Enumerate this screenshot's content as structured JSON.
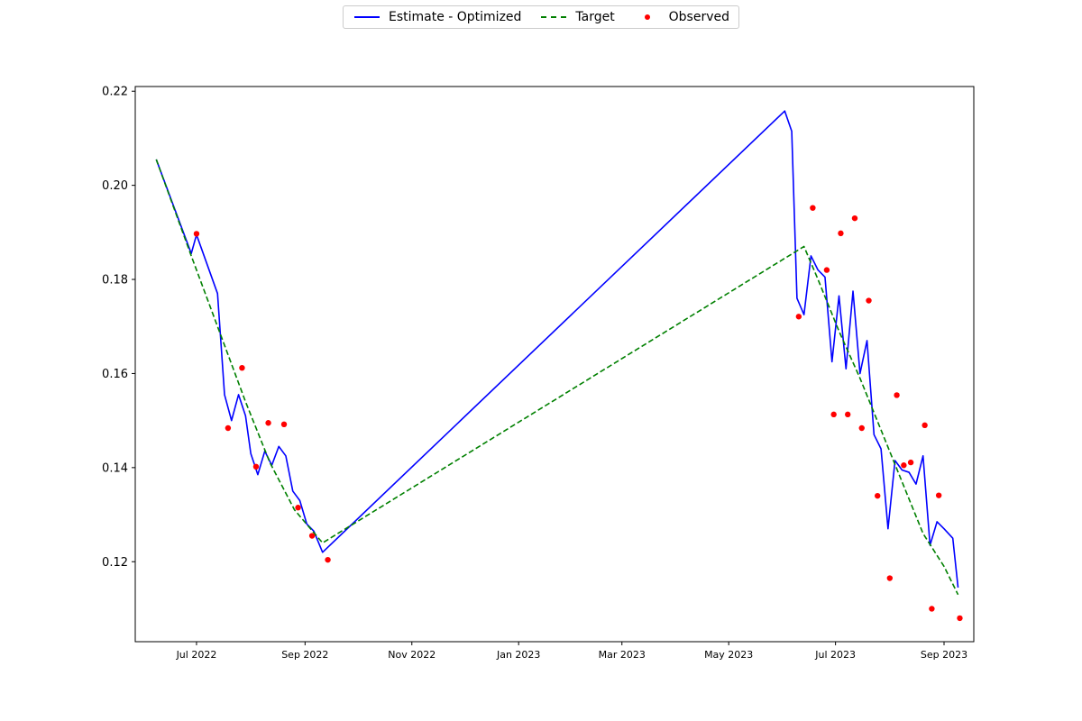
{
  "legend": {
    "items": [
      {
        "label": "Estimate - Optimized",
        "style": "solid",
        "color": "#0000ff"
      },
      {
        "label": "Target",
        "style": "dashed",
        "color": "#008000"
      },
      {
        "label": "Observed",
        "style": "dots",
        "color": "#ff0000"
      }
    ]
  },
  "chart_data": {
    "type": "line",
    "title": "",
    "xlabel": "",
    "ylabel": "",
    "xlim": [
      "2022-05-27",
      "2023-09-18"
    ],
    "ylim": [
      0.103,
      0.221
    ],
    "grid": false,
    "legend_position": "top-center",
    "x_ticks": [
      {
        "date": "2022-07-01",
        "label": "Jul 2022"
      },
      {
        "date": "2022-09-01",
        "label": "Sep 2022"
      },
      {
        "date": "2022-11-01",
        "label": "Nov 2022"
      },
      {
        "date": "2023-01-01",
        "label": "Jan 2023"
      },
      {
        "date": "2023-03-01",
        "label": "Mar 2023"
      },
      {
        "date": "2023-05-01",
        "label": "May 2023"
      },
      {
        "date": "2023-07-01",
        "label": "Jul 2023"
      },
      {
        "date": "2023-09-01",
        "label": "Sep 2023"
      }
    ],
    "y_ticks": [
      {
        "value": 0.12,
        "label": "0.12"
      },
      {
        "value": 0.14,
        "label": "0.14"
      },
      {
        "value": 0.16,
        "label": "0.16"
      },
      {
        "value": 0.18,
        "label": "0.18"
      },
      {
        "value": 0.2,
        "label": "0.2"
      },
      {
        "value": 0.22,
        "label": "0.22"
      }
    ],
    "series": [
      {
        "name": "Estimate - Optimized",
        "kind": "line",
        "style": "solid",
        "color": "#0000ff",
        "points": [
          [
            "2022-06-08",
            0.2055
          ],
          [
            "2022-06-28",
            0.1855
          ],
          [
            "2022-07-01",
            0.1895
          ],
          [
            "2022-07-13",
            0.177
          ],
          [
            "2022-07-17",
            0.1555
          ],
          [
            "2022-07-21",
            0.15
          ],
          [
            "2022-07-25",
            0.1555
          ],
          [
            "2022-07-29",
            0.151
          ],
          [
            "2022-08-01",
            0.143
          ],
          [
            "2022-08-05",
            0.1385
          ],
          [
            "2022-08-09",
            0.1435
          ],
          [
            "2022-08-13",
            0.1405
          ],
          [
            "2022-08-17",
            0.1445
          ],
          [
            "2022-08-21",
            0.1425
          ],
          [
            "2022-08-25",
            0.135
          ],
          [
            "2022-08-29",
            0.133
          ],
          [
            "2022-09-02",
            0.128
          ],
          [
            "2022-09-06",
            0.1265
          ],
          [
            "2022-09-11",
            0.122
          ],
          [
            "2023-06-02",
            0.2158
          ],
          [
            "2023-06-06",
            0.2115
          ],
          [
            "2023-06-09",
            0.176
          ],
          [
            "2023-06-13",
            0.1725
          ],
          [
            "2023-06-17",
            0.185
          ],
          [
            "2023-06-21",
            0.182
          ],
          [
            "2023-06-25",
            0.1805
          ],
          [
            "2023-06-29",
            0.1625
          ],
          [
            "2023-07-03",
            0.1765
          ],
          [
            "2023-07-07",
            0.161
          ],
          [
            "2023-07-11",
            0.1775
          ],
          [
            "2023-07-15",
            0.16
          ],
          [
            "2023-07-19",
            0.167
          ],
          [
            "2023-07-23",
            0.147
          ],
          [
            "2023-07-27",
            0.144
          ],
          [
            "2023-07-31",
            0.127
          ],
          [
            "2023-08-04",
            0.1415
          ],
          [
            "2023-08-08",
            0.1395
          ],
          [
            "2023-08-12",
            0.139
          ],
          [
            "2023-08-16",
            0.1365
          ],
          [
            "2023-08-20",
            0.1425
          ],
          [
            "2023-08-24",
            0.1235
          ],
          [
            "2023-08-28",
            0.1285
          ],
          [
            "2023-09-01",
            0.127
          ],
          [
            "2023-09-06",
            0.125
          ],
          [
            "2023-09-09",
            0.1145
          ]
        ]
      },
      {
        "name": "Target",
        "kind": "line",
        "style": "dashed",
        "color": "#008000",
        "points": [
          [
            "2022-06-08",
            0.2055
          ],
          [
            "2022-06-28",
            0.185
          ],
          [
            "2022-07-15",
            0.168
          ],
          [
            "2022-07-29",
            0.154
          ],
          [
            "2022-08-12",
            0.141
          ],
          [
            "2022-08-26",
            0.131
          ],
          [
            "2022-09-11",
            0.124
          ],
          [
            "2023-06-13",
            0.187
          ],
          [
            "2023-06-21",
            0.18
          ],
          [
            "2023-07-03",
            0.169
          ],
          [
            "2023-07-15",
            0.159
          ],
          [
            "2023-07-27",
            0.148
          ],
          [
            "2023-08-08",
            0.137
          ],
          [
            "2023-08-20",
            0.126
          ],
          [
            "2023-09-01",
            0.119
          ],
          [
            "2023-09-09",
            0.113
          ]
        ]
      },
      {
        "name": "Observed",
        "kind": "scatter",
        "color": "#ff0000",
        "points": [
          [
            "2022-07-01",
            0.1897
          ],
          [
            "2022-07-19",
            0.1484
          ],
          [
            "2022-07-27",
            0.1612
          ],
          [
            "2022-08-04",
            0.1402
          ],
          [
            "2022-08-11",
            0.1495
          ],
          [
            "2022-08-20",
            0.1492
          ],
          [
            "2022-08-28",
            0.1315
          ],
          [
            "2022-09-05",
            0.1255
          ],
          [
            "2022-09-14",
            0.1204
          ],
          [
            "2023-06-10",
            0.1721
          ],
          [
            "2023-06-18",
            0.1952
          ],
          [
            "2023-06-26",
            0.182
          ],
          [
            "2023-06-30",
            0.1513
          ],
          [
            "2023-07-04",
            0.1898
          ],
          [
            "2023-07-08",
            0.1513
          ],
          [
            "2023-07-12",
            0.193
          ],
          [
            "2023-07-16",
            0.1484
          ],
          [
            "2023-07-20",
            0.1755
          ],
          [
            "2023-07-25",
            0.134
          ],
          [
            "2023-08-01",
            0.1165
          ],
          [
            "2023-08-05",
            0.1554
          ],
          [
            "2023-08-09",
            0.1405
          ],
          [
            "2023-08-13",
            0.1411
          ],
          [
            "2023-08-21",
            0.149
          ],
          [
            "2023-08-25",
            0.11
          ],
          [
            "2023-08-29",
            0.1341
          ],
          [
            "2023-09-10",
            0.108
          ]
        ]
      }
    ]
  }
}
